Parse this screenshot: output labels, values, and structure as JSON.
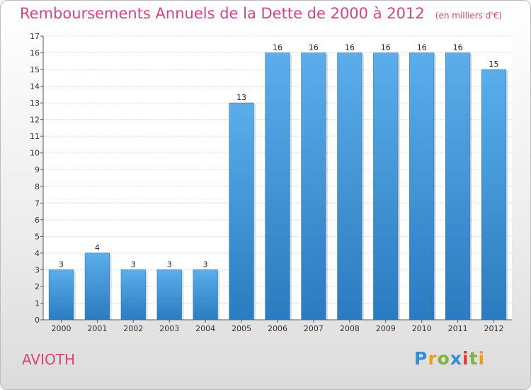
{
  "chart_data": {
    "type": "bar",
    "title": "Remboursements Annuels de la Dette de 2000 à 2012",
    "unit": "(en milliers d'€)",
    "categories": [
      "2000",
      "2001",
      "2002",
      "2003",
      "2004",
      "2005",
      "2006",
      "2007",
      "2008",
      "2009",
      "2010",
      "2011",
      "2012"
    ],
    "values": [
      3,
      4,
      3,
      3,
      3,
      13,
      16,
      16,
      16,
      16,
      16,
      16,
      15
    ],
    "ylim": [
      0,
      17
    ],
    "yticks": [
      0,
      1,
      2,
      3,
      4,
      5,
      6,
      7,
      8,
      9,
      10,
      11,
      12,
      13,
      14,
      15,
      16,
      17
    ],
    "grid": true,
    "bar_color": "#4a9fe0"
  },
  "place": "AVIOTH",
  "logo": {
    "letters": [
      {
        "ch": "P",
        "color": "#2f8fd8"
      },
      {
        "ch": "r",
        "color": "#f39c12"
      },
      {
        "ch": "o",
        "color": "#7cb342"
      },
      {
        "ch": "x",
        "color": "#2f8fd8"
      },
      {
        "ch": "i",
        "color": "#e53935"
      },
      {
        "ch": "t",
        "color": "#7cb342"
      },
      {
        "ch": "i",
        "color": "#f39c12"
      }
    ]
  }
}
